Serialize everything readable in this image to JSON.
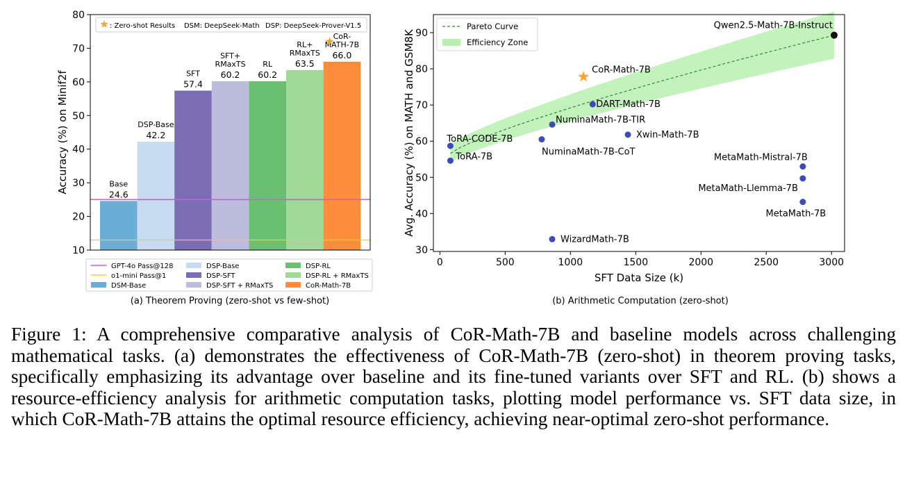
{
  "chart_data": [
    {
      "type": "bar",
      "subtitle": "(a) Theorem Proving (zero-shot vs few-shot)",
      "ylabel": "Accuracy (%) on Minif2f",
      "ylim": [
        10,
        80
      ],
      "yticks": [
        10,
        20,
        30,
        40,
        50,
        60,
        70,
        80
      ],
      "categories": [
        "Base",
        "DSP-Base",
        "SFT",
        "SFT+ RMaxTS",
        "RL",
        "RL+ RMaxTS",
        "CoR- MATH-7B"
      ],
      "bar_labels": [
        [
          "Base"
        ],
        [
          "DSP-Base"
        ],
        [
          "SFT"
        ],
        [
          "SFT+",
          "RMaxTS"
        ],
        [
          "RL"
        ],
        [
          "RL+",
          "RMaxTS"
        ],
        [
          "CoR-",
          "MATH-7B"
        ]
      ],
      "values": [
        24.6,
        42.2,
        57.4,
        60.2,
        60.2,
        63.5,
        66.0
      ],
      "value_labels": [
        "24.6",
        "42.2",
        "57.4",
        "60.2",
        "60.2",
        "63.5",
        "66.0"
      ],
      "colors": [
        "#6aaed6",
        "#c6dbef",
        "#7b6db3",
        "#bcbddc",
        "#6ac070",
        "#a1d99b",
        "#fd8d3c"
      ],
      "zero_shot_marker_index": 6,
      "reference_lines": [
        {
          "name": "GPT-4o Pass@128",
          "value": 25.0,
          "color": "#e64ee6"
        },
        {
          "name": "o1-mini Pass@1",
          "value": 13.0,
          "color": "#e8d02a"
        }
      ],
      "top_legend": {
        "marker_text": ": Zero-shot Results",
        "items": [
          "DSM: DeepSeek-Math",
          "DSP: DeepSeek-Prover-V1.5"
        ]
      },
      "legend": [
        {
          "name": "GPT-4o Pass@128",
          "kind": "line",
          "color": "#e64ee6"
        },
        {
          "name": "o1-mini Pass@1",
          "kind": "line",
          "color": "#e8d02a"
        },
        {
          "name": "DSM-Base",
          "kind": "patch",
          "color": "#6aaed6"
        },
        {
          "name": "DSP-Base",
          "kind": "patch",
          "color": "#c6dbef"
        },
        {
          "name": "DSP-SFT",
          "kind": "patch",
          "color": "#7b6db3"
        },
        {
          "name": "DSP-SFT + RMaxTS",
          "kind": "patch",
          "color": "#bcbddc"
        },
        {
          "name": "DSP-RL",
          "kind": "patch",
          "color": "#6ac070"
        },
        {
          "name": "DSP-RL + RMaxTS",
          "kind": "patch",
          "color": "#a1d99b"
        },
        {
          "name": "CoR-Math-7B",
          "kind": "patch",
          "color": "#fd8d3c"
        }
      ]
    },
    {
      "type": "scatter",
      "subtitle": "(b) Arithmetic Computation (zero-shot)",
      "xlabel": "SFT Data Size (k)",
      "ylabel": "Avg. Accuracy (%) on MATH and GSM8K",
      "xlim": [
        -50,
        3100
      ],
      "ylim": [
        29.5,
        95
      ],
      "xticks": [
        0,
        500,
        1000,
        1500,
        2000,
        2500,
        3000
      ],
      "yticks": [
        30,
        40,
        50,
        60,
        70,
        80,
        90
      ],
      "points": [
        {
          "name": "Qwen2.5-Math-7B-Instruct",
          "x": 3020,
          "y": 89.3,
          "marker": "black"
        },
        {
          "name": "CoR-Math-7B",
          "x": 1100,
          "y": 77.8,
          "marker": "star"
        },
        {
          "name": "DART-Math-7B",
          "x": 1170,
          "y": 70.2,
          "marker": "blue"
        },
        {
          "name": "NuminaMath-7B-TIR",
          "x": 860,
          "y": 64.6,
          "marker": "blue"
        },
        {
          "name": "Xwin-Math-7B",
          "x": 1440,
          "y": 61.8,
          "marker": "blue"
        },
        {
          "name": "NuminaMath-7B-CoT",
          "x": 780,
          "y": 60.5,
          "marker": "blue"
        },
        {
          "name": "ToRA-CODE-7B",
          "x": 80,
          "y": 58.7,
          "marker": "blue"
        },
        {
          "name": "ToRA-7B",
          "x": 80,
          "y": 54.6,
          "marker": "blue"
        },
        {
          "name": "MetaMath-Mistral-7B",
          "x": 2780,
          "y": 53.0,
          "marker": "blue"
        },
        {
          "name": "MetaMath-Llemma-7B",
          "x": 2780,
          "y": 49.7,
          "marker": "blue"
        },
        {
          "name": "MetaMath-7B",
          "x": 2780,
          "y": 43.2,
          "marker": "blue"
        },
        {
          "name": "WizardMath-7B",
          "x": 860,
          "y": 32.9,
          "marker": "blue"
        }
      ],
      "pareto_curve": {
        "name": "Pareto Curve",
        "color": "#2e8b2e",
        "x": [
          80,
          3020
        ],
        "y": [
          56.6,
          89.3
        ]
      },
      "efficiency_zone": {
        "name": "Efficiency Zone",
        "color": "#b9f0b0"
      },
      "legend": [
        "Pareto Curve",
        "Efficiency Zone"
      ]
    }
  ],
  "caption": "Figure 1: A comprehensive comparative analysis of CoR-Math-7B and baseline models across challenging mathematical tasks. (a) demonstrates the effectiveness of CoR-Math-7B (zero-shot) in theorem proving tasks, specifically emphasizing its advantage over baseline and its fine-tuned variants over SFT and RL. (b) shows a resource-efficiency analysis for arithmetic computation tasks, plotting model performance vs. SFT data size, in which CoR-Math-7B attains the optimal resource efficiency, achieving near-optimal zero-shot performance."
}
